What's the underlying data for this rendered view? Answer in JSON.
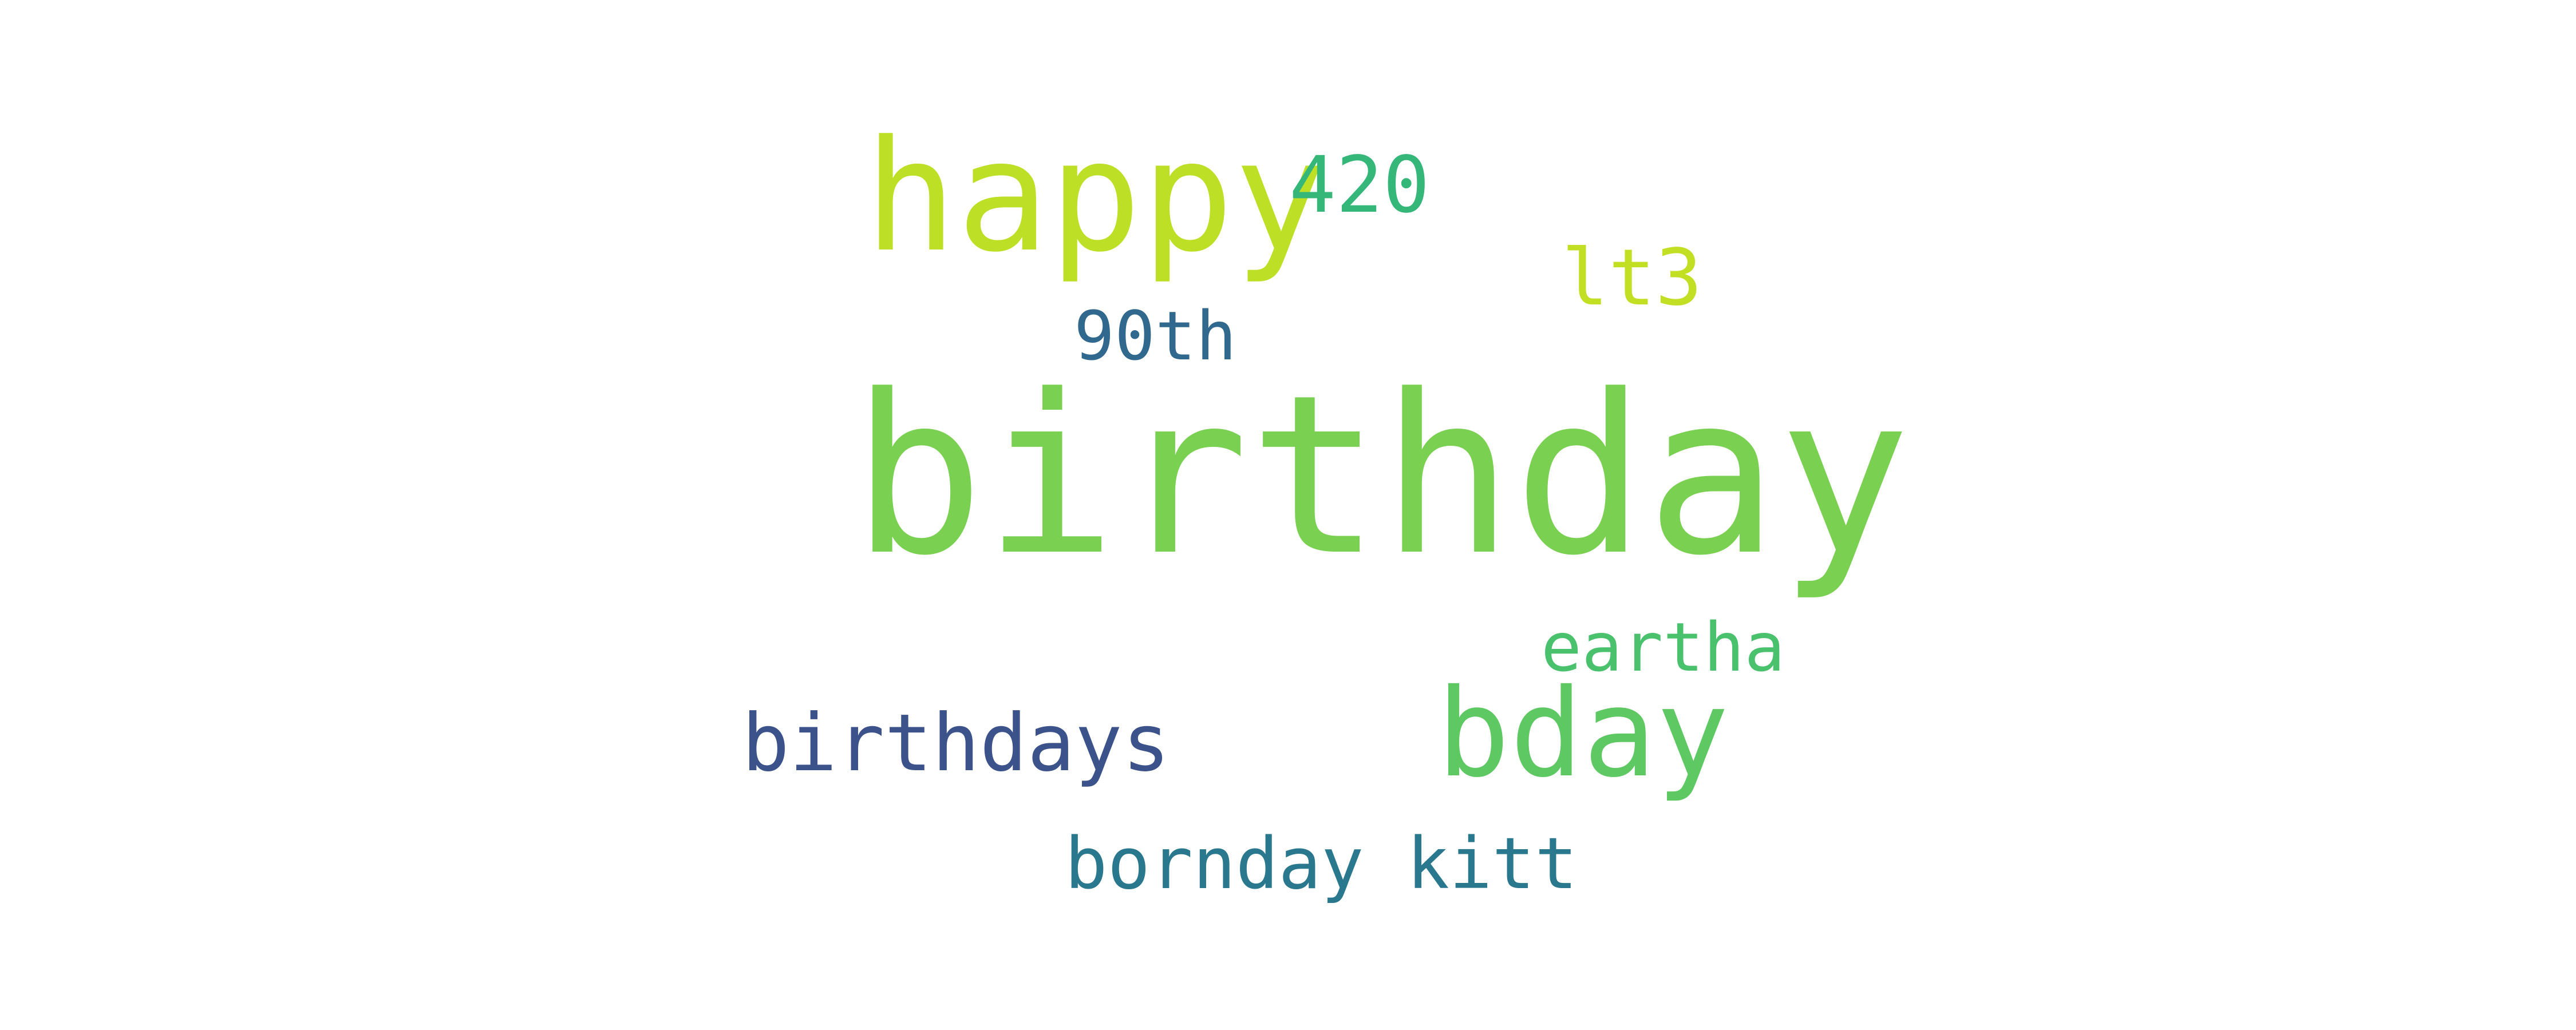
{
  "word_cloud": {
    "words": [
      {
        "id": "birthday",
        "text": "birthday",
        "color": "#7ad151"
      },
      {
        "id": "happy",
        "text": "happy",
        "color": "#bddf26"
      },
      {
        "id": "420",
        "text": "420",
        "color": "#35b779"
      },
      {
        "id": "lt3",
        "text": "lt3",
        "color": "#c2df23"
      },
      {
        "id": "90th",
        "text": "90th",
        "color": "#31688e"
      },
      {
        "id": "eartha",
        "text": "eartha",
        "color": "#4ac16d"
      },
      {
        "id": "bday",
        "text": "bday",
        "color": "#5ec962"
      },
      {
        "id": "birthdays",
        "text": "birthdays",
        "color": "#3b528b"
      },
      {
        "id": "bornday-kitt",
        "text": "bornday kitt",
        "color": "#2a788e"
      }
    ]
  }
}
